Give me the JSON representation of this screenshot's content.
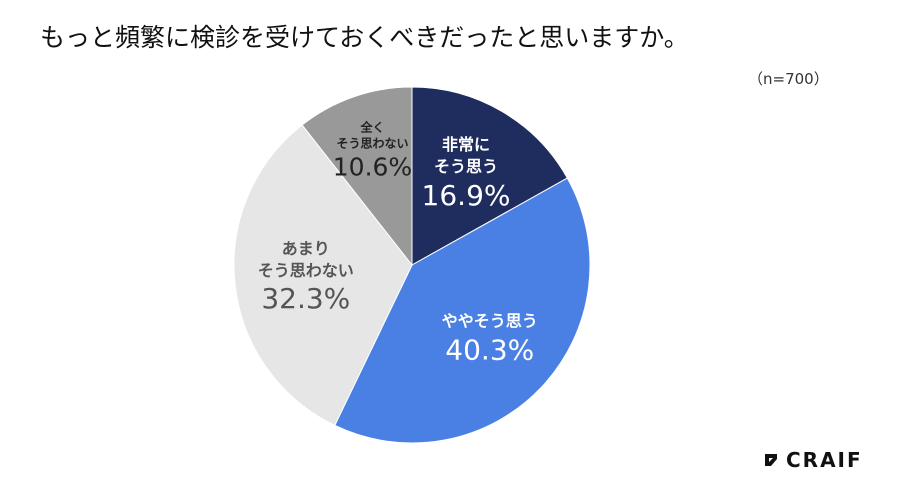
{
  "chart_data": {
    "type": "pie",
    "title": "もっと頻繁に検診を受けておくべきだったと思いますか。",
    "subtitle": "（n=700）",
    "categories": [
      "非常に\nそう思う",
      "ややそう思う",
      "あまり\nそう思わない",
      "全く\nそう思わない"
    ],
    "values": [
      16.9,
      40.3,
      32.3,
      10.6
    ],
    "value_labels": [
      "16.9%",
      "40.3%",
      "32.3%",
      "10.6%"
    ],
    "colors": [
      "#1f2d5e",
      "#4a80e3",
      "#e6e6e6",
      "#999999"
    ],
    "label_colors": [
      "#ffffff",
      "#ffffff",
      "#555555",
      "#222222"
    ],
    "logo": "CRAIF"
  }
}
